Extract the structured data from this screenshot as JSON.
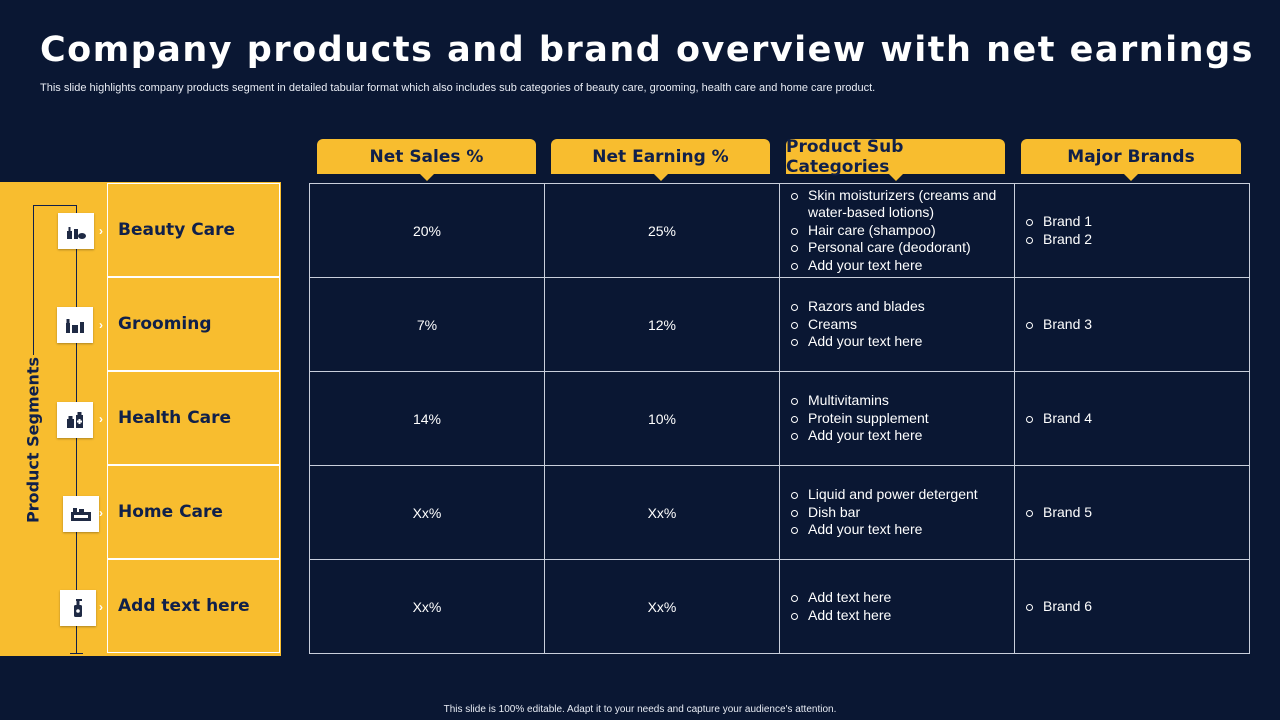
{
  "title": "Company products and brand overview with net earnings",
  "subtitle": "This slide highlights company products segment in detailed tabular format which also includes sub categories of beauty care, grooming, health care and home care product.",
  "headers": [
    "Net Sales %",
    "Net Earning %",
    "Product Sub Categories",
    "Major Brands"
  ],
  "side_label": "Product Segments",
  "rows": [
    {
      "segment": "Beauty Care",
      "icon": "cosmetics-icon",
      "net_sales": "20%",
      "net_earning": "25%",
      "subcategories": [
        "Skin moisturizers (creams and water-based lotions)",
        "Hair care (shampoo)",
        "Personal care (deodorant)",
        "Add your text here"
      ],
      "brands": [
        "Brand 1",
        "Brand 2"
      ]
    },
    {
      "segment": "Grooming",
      "icon": "grooming-kit-icon",
      "net_sales": "7%",
      "net_earning": "12%",
      "subcategories": [
        "Razors and blades",
        "Creams",
        "Add your text here"
      ],
      "brands": [
        "Brand 3"
      ]
    },
    {
      "segment": "Health Care",
      "icon": "medicine-bottles-icon",
      "net_sales": "14%",
      "net_earning": "10%",
      "subcategories": [
        "Multivitamins",
        "Protein supplement",
        "Add your text here"
      ],
      "brands": [
        "Brand 4"
      ]
    },
    {
      "segment": "Home Care",
      "icon": "cleaning-products-icon",
      "net_sales": "Xx%",
      "net_earning": "Xx%",
      "subcategories": [
        "Liquid and power detergent",
        "Dish bar",
        "Add your text here"
      ],
      "brands": [
        "Brand 5"
      ]
    },
    {
      "segment": "Add text here",
      "icon": "lotion-bottle-icon",
      "net_sales": "Xx%",
      "net_earning": "Xx%",
      "subcategories": [
        "Add text here",
        "Add text here"
      ],
      "brands": [
        "Brand 6"
      ]
    }
  ],
  "footer": "This slide is 100% editable.  Adapt it to your needs and capture your audience's attention.",
  "colors": {
    "background": "#0a1733",
    "accent": "#f8bd2f",
    "text_dark": "#10204a"
  }
}
